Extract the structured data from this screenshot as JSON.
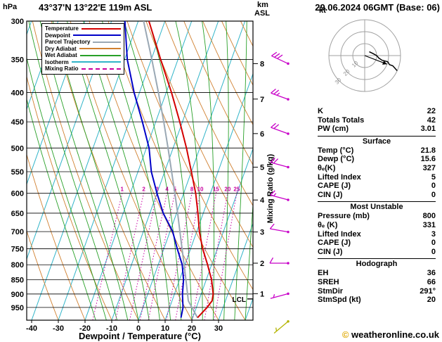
{
  "header": {
    "left_unit": "hPa",
    "station": "43°37'N 13°22'E 119m ASL",
    "datetime": "29.06.2024 06GMT (Base: 06)",
    "km": "km",
    "asl": "ASL"
  },
  "colors": {
    "temperature": "#d40000",
    "dewpoint": "#0000c8",
    "parcel": "#9aa8b4",
    "dry_adiabat": "#d08030",
    "wet_adiabat": "#28a028",
    "isotherm": "#30b4c8",
    "mixing_ratio": "#c800a0",
    "wind": "#c800c8",
    "wind_surface": "#b4b400",
    "axis": "#000000",
    "hodograph_grid": "#a0a0a0"
  },
  "legend": {
    "items": [
      {
        "label": "Temperature",
        "key": "temperature",
        "dashed": false
      },
      {
        "label": "Dewpoint",
        "key": "dewpoint",
        "dashed": false
      },
      {
        "label": "Parcel Trajectory",
        "key": "parcel",
        "dashed": false
      },
      {
        "label": "Dry Adiabat",
        "key": "dry_adiabat",
        "dashed": false
      },
      {
        "label": "Wet Adiabat",
        "key": "wet_adiabat",
        "dashed": false
      },
      {
        "label": "Isotherm",
        "key": "isotherm",
        "dashed": false
      },
      {
        "label": "Mixing Ratio",
        "key": "mixing_ratio",
        "dashed": true
      }
    ]
  },
  "axes": {
    "pressure_ticks_hPa": [
      300,
      350,
      400,
      450,
      500,
      550,
      600,
      650,
      700,
      750,
      800,
      850,
      900,
      950
    ],
    "temp_ticks_C": [
      -40,
      -30,
      -20,
      -10,
      0,
      10,
      20,
      30
    ],
    "x_label": "Dewpoint / Temperature (°C)",
    "mixing_axis_label": "Mixing Ratio (g/kg)",
    "km_ticks": [
      1,
      2,
      3,
      4,
      5,
      6,
      7,
      8
    ],
    "lcl_label": "LCL"
  },
  "chart_data": {
    "type": "skewt_logp_sounding",
    "p_range_hPa": [
      300,
      1000
    ],
    "t_axis_range_C": [
      -40,
      30
    ],
    "pressure_hPa": [
      990,
      950,
      925,
      900,
      850,
      800,
      750,
      700,
      650,
      600,
      550,
      500,
      450,
      400,
      350,
      300
    ],
    "temperature_C": [
      21.8,
      24.0,
      25.0,
      24.5,
      22.0,
      18.5,
      14.5,
      11.0,
      8.0,
      4.5,
      0.0,
      -5.0,
      -11.0,
      -18.0,
      -26.5,
      -36.0
    ],
    "dewpoint_C": [
      15.6,
      15.0,
      14.0,
      13.0,
      11.5,
      9.0,
      5.0,
      1.0,
      -5.0,
      -10.0,
      -15.0,
      -19.0,
      -25.0,
      -32.0,
      -39.0,
      -45.0
    ],
    "parcel_C": [
      21.8,
      18.3,
      16.1,
      14.9,
      12.4,
      9.7,
      6.8,
      3.7,
      0.4,
      -3.3,
      -7.4,
      -11.9,
      -17.0,
      -22.9,
      -29.8,
      -38.0
    ],
    "lcl_hPa": 918,
    "mixing_ratio_lines_gkg": [
      1,
      2,
      3,
      4,
      5,
      8,
      10,
      15,
      20,
      25
    ],
    "mixing_label_pressure_hPa": 600,
    "isotherm_family_C": {
      "min": -110,
      "max": 40,
      "step": 10
    },
    "dry_adiabat_family_C": {
      "min": -30,
      "max": 160,
      "step": 10
    },
    "wet_adiabat_family_C": {
      "min": -16,
      "max": 40,
      "step": 4
    },
    "winds": [
      {
        "z_km": 8,
        "p": 356,
        "dir": 295,
        "kt": 30
      },
      {
        "z_km": 7,
        "p": 411,
        "dir": 290,
        "kt": 25
      },
      {
        "z_km": 6,
        "p": 472,
        "dir": 290,
        "kt": 22
      },
      {
        "z_km": 5,
        "p": 540,
        "dir": 285,
        "kt": 20
      },
      {
        "z_km": 4,
        "p": 616,
        "dir": 285,
        "kt": 15
      },
      {
        "z_km": 3,
        "p": 701,
        "dir": 280,
        "kt": 12
      },
      {
        "z_km": 2,
        "p": 795,
        "dir": 270,
        "kt": 10
      },
      {
        "z_km": 1,
        "p": 899,
        "dir": 255,
        "kt": 7
      },
      {
        "z_km": 0,
        "p": 1005,
        "dir": 230,
        "kt": 5,
        "surface": true
      }
    ]
  },
  "hodograph": {
    "unit_label": "kt",
    "rings_kt": [
      10,
      20,
      30
    ],
    "storm_dir_deg": 291,
    "storm_speed_kt": 20
  },
  "table": {
    "rows_top": [
      [
        "K",
        "22"
      ],
      [
        "Totals Totals",
        "42"
      ],
      [
        "PW (cm)",
        "3.01"
      ]
    ],
    "sections": [
      {
        "title": "Surface",
        "rows": [
          [
            "Temp (°C)",
            "21.8"
          ],
          [
            "Dewp (°C)",
            "15.6"
          ],
          [
            "θₑ(K)",
            "327"
          ],
          [
            "Lifted Index",
            "5"
          ],
          [
            "CAPE (J)",
            "0"
          ],
          [
            "CIN (J)",
            "0"
          ]
        ]
      },
      {
        "title": "Most Unstable",
        "rows": [
          [
            "Pressure (mb)",
            "800"
          ],
          [
            "θₑ (K)",
            "331"
          ],
          [
            "Lifted Index",
            "3"
          ],
          [
            "CAPE (J)",
            "0"
          ],
          [
            "CIN (J)",
            "0"
          ]
        ]
      },
      {
        "title": "Hodograph",
        "rows": [
          [
            "EH",
            "36"
          ],
          [
            "SREH",
            "66"
          ],
          [
            "StmDir",
            "291°"
          ],
          [
            "StmSpd (kt)",
            "20"
          ]
        ]
      }
    ]
  },
  "footer": {
    "symbol": "©",
    "site": " weatheronline.co.uk"
  }
}
